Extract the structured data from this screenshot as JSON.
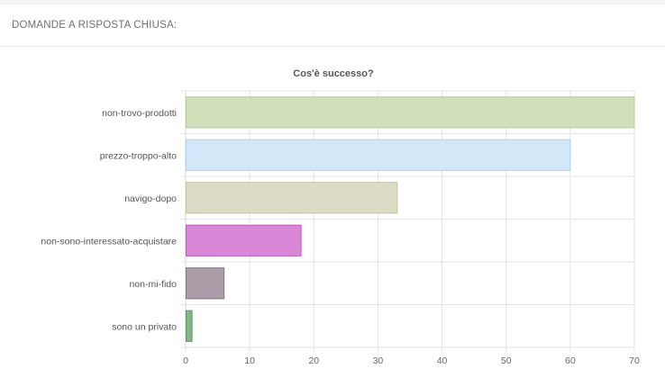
{
  "section": {
    "title": "DOMANDE A RISPOSTA CHIUSA:"
  },
  "chart_data": {
    "type": "bar",
    "orientation": "horizontal",
    "title": "Cos'è successo?",
    "categories": [
      "non-trovo-prodotti",
      "prezzo-troppo-alto",
      "navigo-dopo",
      "non-sono-interessato-acquistare",
      "non-mi-fido",
      "sono un privato"
    ],
    "values": [
      70,
      60,
      33,
      18,
      6,
      1
    ],
    "colors": [
      "#cfe0bb",
      "#d2e8f8",
      "#dcdbc6",
      "#d888d6",
      "#ab9ea8",
      "#86b58a"
    ],
    "border_colors": [
      "#b4cc98",
      "#aed2ef",
      "#c4c2a6",
      "#b65db4",
      "#857682",
      "#5f9463"
    ],
    "xlim": [
      0,
      70
    ],
    "xticks": [
      0,
      10,
      20,
      30,
      40,
      50,
      60,
      70
    ],
    "grid": true,
    "legend": "none"
  }
}
